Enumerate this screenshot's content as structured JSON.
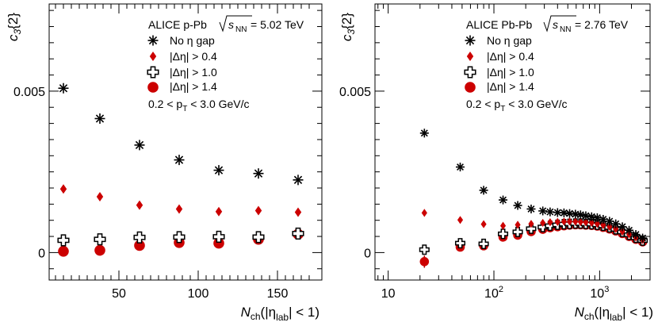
{
  "colors": {
    "black": "#000000",
    "red": "#cc0000",
    "dark_red": "#b00000"
  },
  "chart_data": [
    {
      "type": "scatter",
      "panel": "left",
      "title": "ALICE p-Pb",
      "energy_label": "s",
      "energy_sub": "NN",
      "energy_value": " = 5.02 TeV",
      "ylabel": "c",
      "ylabel_sub": "3",
      "ylabel_suffix": "{2}",
      "xlabel": "N",
      "xlabel_sub": "ch",
      "xlabel_suffix": "(|η",
      "xlabel_sub2": "lab",
      "xlabel_end": "| < 1)",
      "xscale": "linear",
      "xlim": [
        6,
        178
      ],
      "ylim": [
        -0.00085,
        0.0077
      ],
      "xticks": [
        50,
        100,
        150
      ],
      "xtick_labels": [
        "50",
        "100",
        "150"
      ],
      "yticks": [
        0,
        0.005
      ],
      "ytick_labels": [
        "0",
        "0.005"
      ],
      "pt_label": "0.2 < p",
      "pt_sub": "T",
      "pt_end": " < 3.0 GeV/c",
      "legend": [
        "No η gap",
        "|Δη| > 0.4",
        "|Δη| > 1.0",
        "|Δη| > 1.4"
      ],
      "series": [
        {
          "name": "No η gap",
          "marker": "star",
          "x": [
            15,
            38,
            63,
            88,
            113,
            138,
            163
          ],
          "y": [
            0.00509,
            0.00415,
            0.00333,
            0.00287,
            0.00255,
            0.00245,
            0.00225
          ]
        },
        {
          "name": "|Δη| > 0.4",
          "marker": "diamond",
          "x": [
            15,
            38,
            63,
            88,
            113,
            138,
            163
          ],
          "y": [
            0.00197,
            0.00173,
            0.00147,
            0.00135,
            0.00127,
            0.0013,
            0.00125
          ]
        },
        {
          "name": "|Δη| > 1.0",
          "marker": "cross",
          "x": [
            15,
            38,
            63,
            88,
            113,
            138,
            163
          ],
          "y": [
            0.00038,
            0.00041,
            0.00047,
            0.00048,
            0.00049,
            0.00048,
            0.00059
          ]
        },
        {
          "name": "|Δη| > 1.4",
          "marker": "circle",
          "x": [
            15,
            38,
            63,
            88,
            113,
            138,
            163
          ],
          "y": [
            4e-05,
            7e-05,
            0.00022,
            0.00031,
            0.00029,
            0.00041,
            0.00057
          ]
        }
      ]
    },
    {
      "type": "scatter",
      "panel": "right",
      "title": "ALICE Pb-Pb",
      "energy_label": "s",
      "energy_sub": "NN",
      "energy_value": " = 2.76 TeV",
      "ylabel": "c",
      "ylabel_sub": "3",
      "ylabel_suffix": "{2}",
      "xlabel": "N",
      "xlabel_sub": "ch",
      "xlabel_suffix": "(|η",
      "xlabel_sub2": "lab",
      "xlabel_end": "| < 1)",
      "xscale": "log",
      "xlim": [
        7.5,
        3000
      ],
      "ylim": [
        -0.00085,
        0.0077
      ],
      "xticks": [
        10,
        100,
        1000
      ],
      "xtick_labels": [
        "10",
        "10",
        "10"
      ],
      "xtick_exponents": [
        "",
        "2",
        "3"
      ],
      "yticks": [
        0,
        0.005
      ],
      "ytick_labels": [
        "0",
        "0.005"
      ],
      "pt_label": "0.2 < p",
      "pt_sub": "T",
      "pt_end": " < 3.0 GeV/c",
      "legend": [
        "No η gap",
        "|Δη| > 0.4",
        "|Δη| > 1.0",
        "|Δη| > 1.4"
      ],
      "series": [
        {
          "name": "No η gap",
          "marker": "star",
          "x": [
            22,
            48,
            80,
            122,
            168,
            225,
            290,
            340,
            400,
            460,
            520,
            590,
            660,
            740,
            840,
            950,
            1080,
            1240,
            1420,
            1640,
            1900,
            2200,
            2550
          ],
          "y": [
            0.0037,
            0.00265,
            0.00193,
            0.00163,
            0.00146,
            0.00135,
            0.00129,
            0.00126,
            0.00124,
            0.00123,
            0.00121,
            0.00119,
            0.00117,
            0.00114,
            0.00111,
            0.00108,
            0.00103,
            0.00097,
            0.00089,
            0.0008,
            0.00069,
            0.00056,
            0.00045
          ]
        },
        {
          "name": "|Δη| > 0.4",
          "marker": "diamond",
          "x": [
            22,
            48,
            80,
            122,
            168,
            225,
            290,
            340,
            400,
            460,
            520,
            590,
            660,
            740,
            840,
            950,
            1080,
            1240,
            1420,
            1640,
            1900,
            2200,
            2550
          ],
          "y": [
            0.00123,
            0.00101,
            0.00088,
            0.00083,
            0.00086,
            0.00089,
            0.00092,
            0.00094,
            0.00095,
            0.00096,
            0.00096,
            0.00096,
            0.00095,
            0.00094,
            0.00092,
            0.00089,
            0.00085,
            0.0008,
            0.00073,
            0.00065,
            0.00056,
            0.00047,
            0.00039
          ]
        },
        {
          "name": "|Δη| > 1.0",
          "marker": "cross",
          "x": [
            22,
            48,
            80,
            122,
            168,
            225,
            290,
            340,
            400,
            460,
            520,
            590,
            660,
            740,
            840,
            950,
            1080,
            1240,
            1420,
            1640,
            1900,
            2200,
            2550
          ],
          "y": [
            9e-05,
            0.00029,
            0.00027,
            0.00058,
            0.00064,
            0.00074,
            0.00079,
            0.00083,
            0.00086,
            0.00088,
            0.00089,
            0.0009,
            0.0009,
            0.00089,
            0.00088,
            0.00086,
            0.00083,
            0.00078,
            0.00072,
            0.00064,
            0.00055,
            0.00046,
            0.00037
          ]
        },
        {
          "name": "|Δη| > 1.4",
          "marker": "circle",
          "x": [
            22,
            48,
            80,
            122,
            168,
            225,
            290,
            340,
            400,
            460,
            520,
            590,
            660,
            740,
            840,
            950,
            1080,
            1240,
            1420,
            1640,
            1900,
            2200,
            2550
          ],
          "y": [
            -0.00028,
            0.00017,
            0.00021,
            0.00048,
            0.00054,
            0.00065,
            0.00072,
            0.00077,
            0.0008,
            0.00083,
            0.00085,
            0.00086,
            0.00086,
            0.00085,
            0.00084,
            0.00082,
            0.00078,
            0.00073,
            0.00067,
            0.00059,
            0.0005,
            0.00041,
            0.00033
          ],
          "err": [
            0.00019,
            0.00012,
            8e-05,
            5e-05,
            4e-05,
            3e-05,
            0,
            0,
            0,
            0,
            0,
            0,
            0,
            0,
            0,
            0,
            0,
            0,
            0,
            0,
            0,
            0,
            0
          ]
        }
      ]
    }
  ]
}
